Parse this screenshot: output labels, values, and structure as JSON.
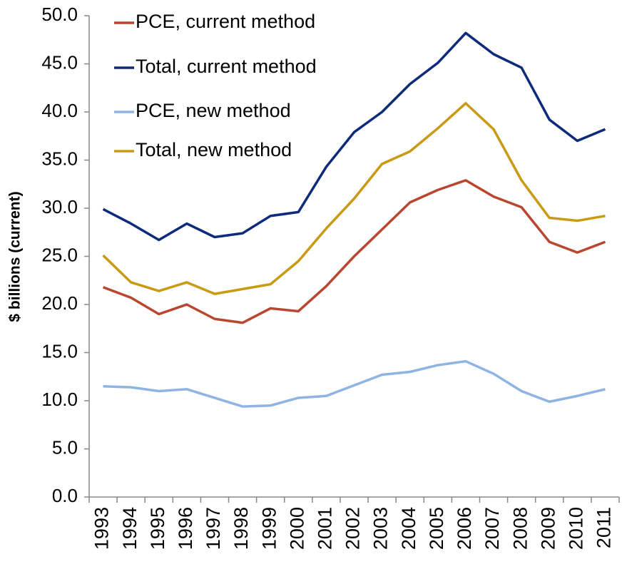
{
  "chart_data": {
    "type": "line",
    "y_label": "$ billions (current)",
    "categories": [
      "1993",
      "1994",
      "1995",
      "1996",
      "1997",
      "1998",
      "1999",
      "2000",
      "2001",
      "2002",
      "2003",
      "2004",
      "2005",
      "2006",
      "2007",
      "2008",
      "2009",
      "2010",
      "2011"
    ],
    "series": [
      {
        "name": "PCE, current method",
        "color": "#b9472f",
        "values": [
          21.8,
          20.7,
          19.0,
          20.0,
          18.5,
          18.1,
          19.6,
          19.3,
          21.9,
          25.0,
          27.8,
          30.6,
          31.9,
          32.9,
          31.2,
          30.1,
          26.5,
          25.4,
          26.5
        ]
      },
      {
        "name": "Total, current method",
        "color": "#0e2a7b",
        "values": [
          29.9,
          28.4,
          26.7,
          28.4,
          27.0,
          27.4,
          29.2,
          29.6,
          34.3,
          37.9,
          40.0,
          42.9,
          45.1,
          48.2,
          46.0,
          44.6,
          39.2,
          37.0,
          38.2
        ]
      },
      {
        "name": "PCE, new method",
        "color": "#8fb4e3",
        "values": [
          11.5,
          11.4,
          11.0,
          11.2,
          10.3,
          9.4,
          9.5,
          10.3,
          10.5,
          11.6,
          12.7,
          13.0,
          13.7,
          14.1,
          12.8,
          11.0,
          9.9,
          10.5,
          11.2
        ]
      },
      {
        "name": "Total, new method",
        "color": "#c99a14",
        "values": [
          25.1,
          22.3,
          21.4,
          22.3,
          21.1,
          21.6,
          22.1,
          24.5,
          27.9,
          31.0,
          34.6,
          35.9,
          38.3,
          40.9,
          38.2,
          32.9,
          29.0,
          28.7,
          29.2
        ]
      }
    ],
    "ylim": [
      0,
      50
    ],
    "yticks": [
      {
        "value": 0,
        "label": "0.0"
      },
      {
        "value": 5,
        "label": "5.0"
      },
      {
        "value": 10,
        "label": "10.0"
      },
      {
        "value": 15,
        "label": "15.0"
      },
      {
        "value": 20,
        "label": "20.0"
      },
      {
        "value": 25,
        "label": "25.0"
      },
      {
        "value": 30,
        "label": "30.0"
      },
      {
        "value": 35,
        "label": "35.0"
      },
      {
        "value": 40,
        "label": "40.0"
      },
      {
        "value": 45,
        "label": "45.0"
      },
      {
        "value": 50,
        "label": "50.0"
      }
    ],
    "grid": false,
    "legend": "top-left"
  }
}
